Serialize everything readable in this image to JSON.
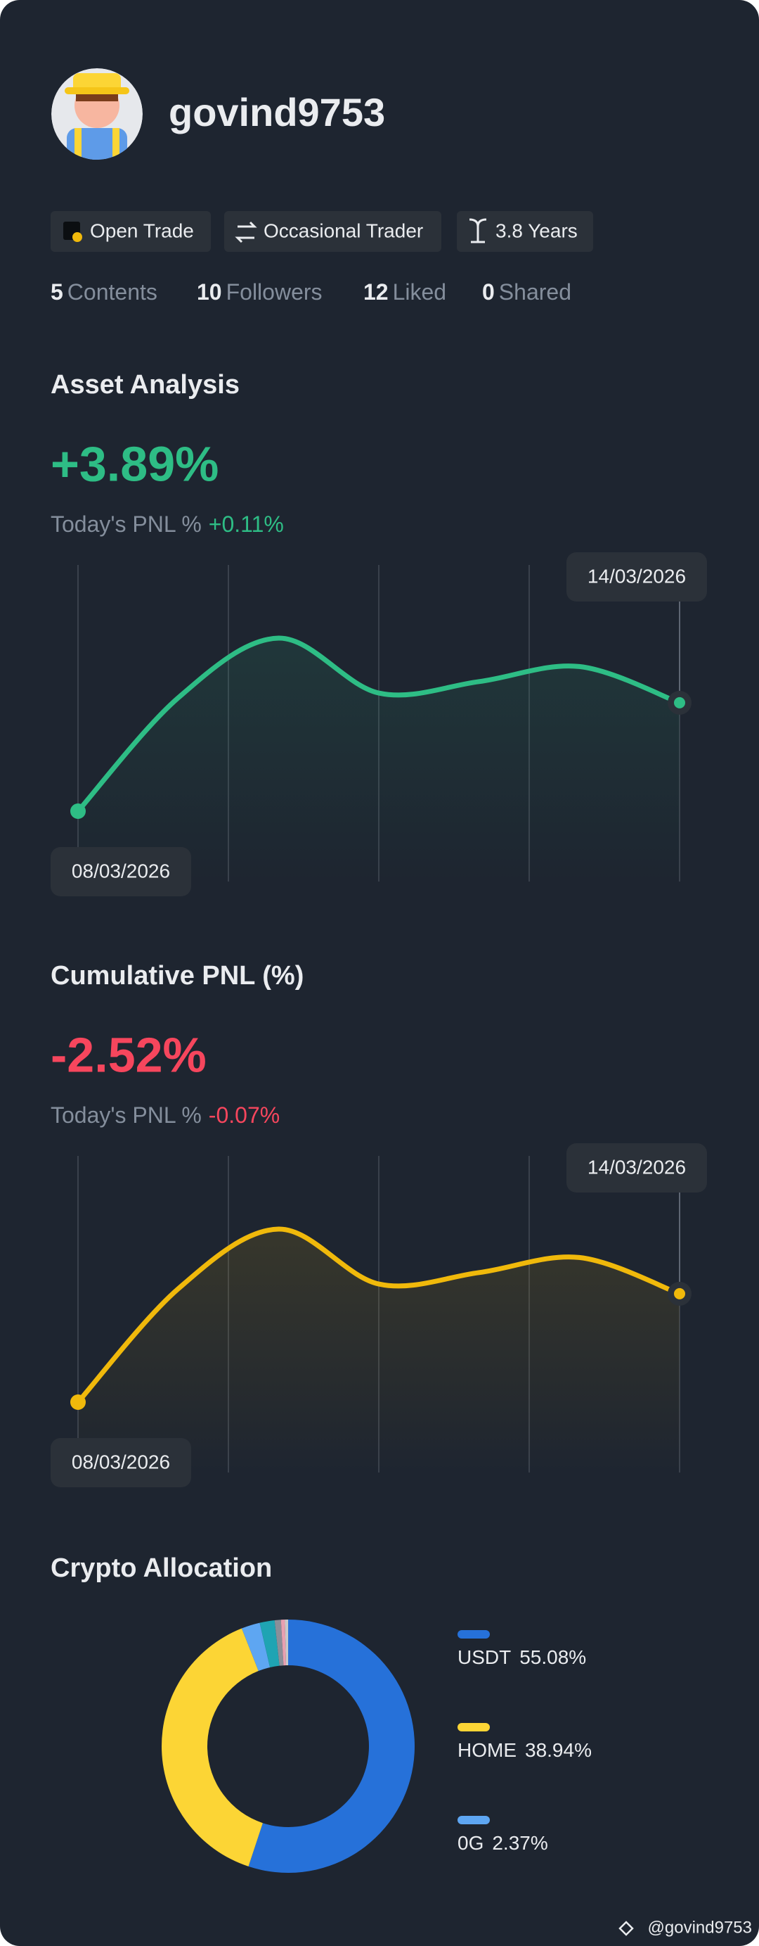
{
  "profile": {
    "username": "govind9753",
    "badges": [
      "Open Trade",
      "Occasional Trader",
      "3.8 Years"
    ],
    "stats": [
      {
        "count": 5,
        "label": "Contents"
      },
      {
        "count": 10,
        "label": "Followers"
      },
      {
        "count": 12,
        "label": "Liked"
      },
      {
        "count": 0,
        "label": "Shared"
      }
    ],
    "watermark": "@govind9753"
  },
  "chart_data": [
    {
      "type": "line",
      "title": "Asset Analysis",
      "summary": "+3.89%",
      "today_label": "Today's PNL %",
      "today_value": "+0.11%",
      "categories": [
        "08/03/2026",
        null,
        null,
        null,
        null,
        null,
        "14/03/2026"
      ],
      "series": [
        {
          "color": "#2ebd85",
          "values": [
            0,
            4.07,
            6.21,
            4.24,
            4.65,
            5.19,
            3.89
          ]
        }
      ]
    },
    {
      "type": "line",
      "title": "Cumulative PNL (%)",
      "summary": "-2.52%",
      "today_label": "Today's PNL %",
      "today_value": "-0.07%",
      "categories": [
        "08/03/2026",
        null,
        null,
        null,
        null,
        null,
        "14/03/2026"
      ],
      "series": [
        {
          "color": "#f0b90b",
          "values": [
            -6.41,
            -2.34,
            -0.2,
            -2.17,
            -1.76,
            -1.22,
            -2.52
          ]
        }
      ]
    },
    {
      "type": "pie",
      "title": "Crypto Allocation",
      "categories": [
        "USDT",
        "HOME",
        "0G",
        null,
        null,
        null,
        null
      ],
      "values": [
        55.08,
        38.94,
        2.37,
        1.9,
        0.8,
        0.5,
        0.41
      ],
      "value_labels": [
        "55.08%",
        "38.94%",
        "2.37%",
        null,
        null,
        null,
        null
      ],
      "colors": [
        "#2671d9",
        "#fcd535",
        "#5ea6f2",
        "#1fa4b3",
        "#8a8f99",
        "#e8a0b0",
        "#c9c9c9"
      ]
    }
  ]
}
